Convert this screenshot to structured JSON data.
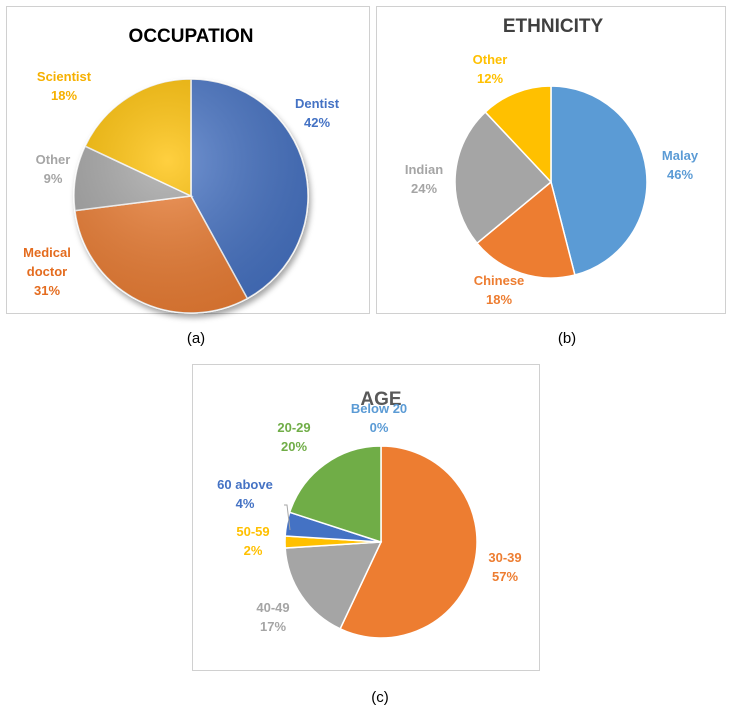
{
  "captions": {
    "a": "(a)",
    "b": "(b)",
    "c": "(c)"
  },
  "chart_data": [
    {
      "type": "pie",
      "title": "OCCUPATION",
      "categories": [
        "Dentist",
        "Medical doctor",
        "Other",
        "Scientist"
      ],
      "values": [
        42,
        31,
        9,
        18
      ],
      "value_labels": [
        "42%",
        "31%",
        "9%",
        "18%"
      ],
      "label_lines": [
        [
          "Dentist"
        ],
        [
          "Medical",
          "doctor"
        ],
        [
          "Other"
        ],
        [
          "Scientist"
        ]
      ],
      "colors": [
        "#4472C4",
        "#ED7D31",
        "#A5A5A5",
        "#FFC000"
      ],
      "label_colors": [
        "#4472C4",
        "#E46C1F",
        "#A5A5A5",
        "#F6B000"
      ],
      "start_angle_deg": 0,
      "shaded_3d": true
    },
    {
      "type": "pie",
      "title": "ETHNICITY",
      "categories": [
        "Malay",
        "Chinese",
        "Indian",
        "Other"
      ],
      "values": [
        46,
        18,
        24,
        12
      ],
      "value_labels": [
        "46%",
        "18%",
        "24%",
        "12%"
      ],
      "label_lines": [
        [
          "Malay"
        ],
        [
          "Chinese"
        ],
        [
          "Indian"
        ],
        [
          "Other"
        ]
      ],
      "colors": [
        "#5B9BD5",
        "#ED7D31",
        "#A5A5A5",
        "#FFC000"
      ],
      "label_colors": [
        "#5B9BD5",
        "#ED7D31",
        "#A5A5A5",
        "#FFC000"
      ],
      "start_angle_deg": 0,
      "shaded_3d": false
    },
    {
      "type": "pie",
      "title": "AGE",
      "categories": [
        "Below 20",
        "30-39",
        "40-49",
        "50-59",
        "60 above",
        "20-29"
      ],
      "values": [
        0,
        57,
        17,
        2,
        4,
        20
      ],
      "value_labels": [
        "0%",
        "57%",
        "17%",
        "2%",
        "4%",
        "20%"
      ],
      "label_lines": [
        [
          "Below 20"
        ],
        [
          "30-39"
        ],
        [
          "40-49"
        ],
        [
          "50-59"
        ],
        [
          "60 above"
        ],
        [
          "20-29"
        ]
      ],
      "colors": [
        "#5B9BD5",
        "#ED7D31",
        "#A5A5A5",
        "#FFC000",
        "#4472C4",
        "#70AD47"
      ],
      "label_colors": [
        "#5B9BD5",
        "#ED7D31",
        "#A5A5A5",
        "#FFC000",
        "#4472C4",
        "#70AD47"
      ],
      "start_angle_deg": 0,
      "shaded_3d": false
    }
  ]
}
